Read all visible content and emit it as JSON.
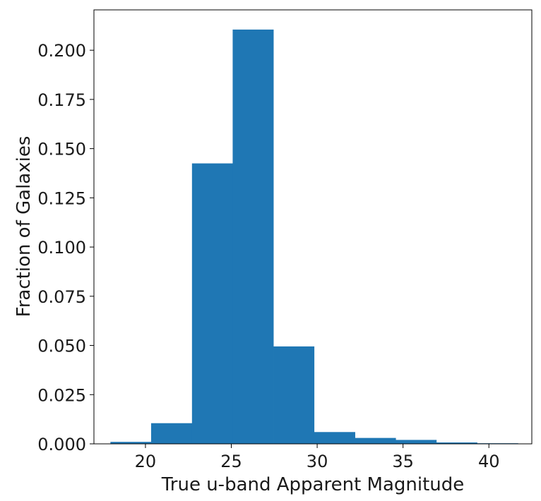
{
  "chart_data": {
    "type": "bar",
    "xlabel": "True u-band Apparent Magnitude",
    "ylabel": "Fraction of Galaxies",
    "xlim": [
      17.0,
      42.5
    ],
    "ylim": [
      0.0,
      0.2205
    ],
    "bin_edges": [
      17.96,
      20.33,
      22.71,
      25.08,
      27.45,
      29.82,
      32.2,
      34.57,
      36.94,
      39.31,
      41.69
    ],
    "values": [
      0.001,
      0.0105,
      0.1425,
      0.2105,
      0.0495,
      0.006,
      0.003,
      0.002,
      0.0007,
      0.0003
    ],
    "x_ticks": [
      20,
      25,
      30,
      35,
      40
    ],
    "x_tick_labels": [
      "20",
      "25",
      "30",
      "35",
      "40"
    ],
    "y_ticks": [
      0.0,
      0.025,
      0.05,
      0.075,
      0.1,
      0.125,
      0.15,
      0.175,
      0.2
    ],
    "y_tick_labels": [
      "0.000",
      "0.025",
      "0.050",
      "0.075",
      "0.100",
      "0.125",
      "0.150",
      "0.175",
      "0.200"
    ],
    "grid": false,
    "colors": {
      "bar": "#1f77b4"
    }
  }
}
